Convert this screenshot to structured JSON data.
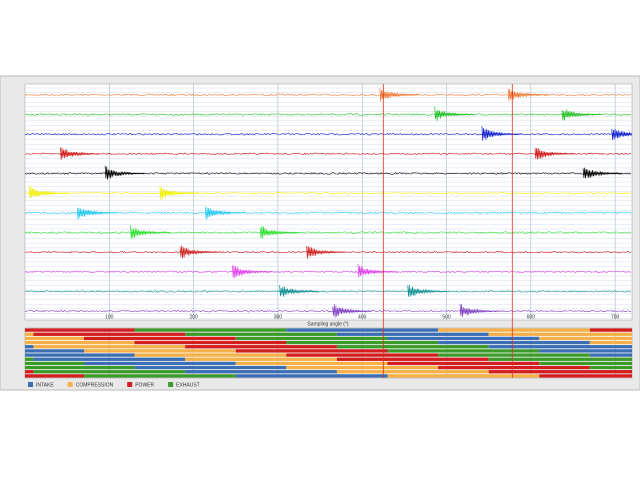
{
  "chart_data": {
    "type": "line",
    "x_label": "Sampling angle (°)",
    "xlim": [
      0,
      720
    ],
    "xticks": [
      100,
      200,
      300,
      400,
      500,
      600,
      700
    ],
    "cursors": [
      425,
      578
    ],
    "cursor_color": "#e03020",
    "series": [
      {
        "color": "#f07830",
        "bursts": [
          421,
          573
        ]
      },
      {
        "color": "#20c020",
        "bursts": [
          486,
          637
        ]
      },
      {
        "color": "#1020d0",
        "bursts": [
          542,
          696
        ]
      },
      {
        "color": "#d01818",
        "bursts": [
          42,
          605
        ]
      },
      {
        "color": "#000000",
        "bursts": [
          95,
          662
        ]
      },
      {
        "color": "#f0f000",
        "bursts": [
          5,
          160
        ]
      },
      {
        "color": "#20c8f0",
        "bursts": [
          62,
          214
        ]
      },
      {
        "color": "#30e030",
        "bursts": [
          125,
          279
        ]
      },
      {
        "color": "#d02020",
        "bursts": [
          184,
          334
        ]
      },
      {
        "color": "#e040e8",
        "bursts": [
          246,
          395
        ]
      },
      {
        "color": "#109090",
        "bursts": [
          302,
          454
        ]
      },
      {
        "color": "#8040c0",
        "bursts": [
          365,
          516
        ]
      }
    ],
    "phases": [
      {
        "name": "INTAKE",
        "color": "#3c6eb4"
      },
      {
        "name": "COMPRESSION",
        "color": "#f5b04a"
      },
      {
        "name": "POWER",
        "color": "#d21e1e"
      },
      {
        "name": "EXHAUST",
        "color": "#3c9a2a"
      }
    ],
    "power_starts": [
      -50,
      10,
      70,
      130,
      190,
      250,
      310,
      370,
      430,
      490,
      550,
      610
    ]
  }
}
